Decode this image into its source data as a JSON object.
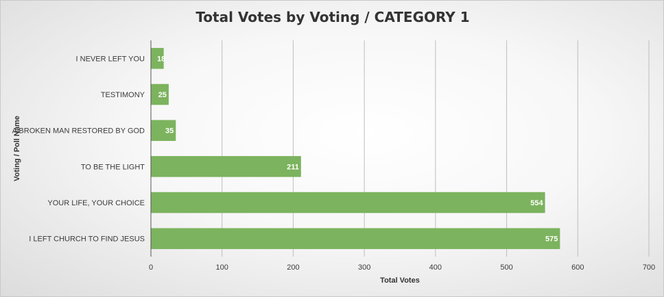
{
  "chart_data": {
    "type": "bar",
    "orientation": "horizontal",
    "title": "Total Votes by Voting / CATEGORY 1",
    "xlabel": "Total Votes",
    "ylabel": "Voting / Poll Name",
    "categories": [
      "I NEVER LEFT YOU",
      "TESTIMONY",
      "A BROKEN MAN RESTORED BY GOD",
      "TO BE THE LIGHT",
      "YOUR LIFE, YOUR CHOICE",
      "I LEFT CHURCH TO FIND JESUS"
    ],
    "values": [
      18,
      25,
      35,
      211,
      554,
      575
    ],
    "xlim": [
      0,
      700
    ],
    "xticks": [
      "0",
      "100",
      "200",
      "300",
      "400",
      "500",
      "600",
      "700"
    ],
    "xtick_values": [
      0,
      100,
      200,
      300,
      400,
      500,
      600,
      700
    ],
    "data_labels": true,
    "grid": true,
    "legend": "none",
    "bar_color": "#7cb35e"
  }
}
